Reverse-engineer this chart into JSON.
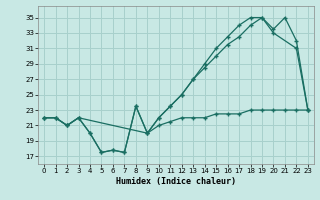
{
  "xlabel": "Humidex (Indice chaleur)",
  "bg_color": "#c8e8e4",
  "grid_color": "#a8d0cc",
  "line_color": "#1a6e62",
  "xlim": [
    -0.5,
    23.5
  ],
  "ylim": [
    16.0,
    36.5
  ],
  "xticks": [
    0,
    1,
    2,
    3,
    4,
    5,
    6,
    7,
    8,
    9,
    10,
    11,
    12,
    13,
    14,
    15,
    16,
    17,
    18,
    19,
    20,
    21,
    22,
    23
  ],
  "yticks": [
    17,
    19,
    21,
    23,
    25,
    27,
    29,
    31,
    33,
    35
  ],
  "line1_x": [
    0,
    1,
    2,
    3,
    4,
    5,
    6,
    7,
    8,
    9,
    10,
    11,
    12,
    13,
    14,
    15,
    16,
    17,
    18,
    19,
    20,
    22,
    23
  ],
  "line1_y": [
    22,
    22,
    21,
    22,
    20,
    17.5,
    17.8,
    17.5,
    23.5,
    20,
    22,
    23.5,
    25,
    27,
    28.5,
    30,
    31.5,
    32.5,
    34,
    35,
    33,
    31,
    23
  ],
  "line2_x": [
    0,
    1,
    2,
    3,
    4,
    5,
    6,
    7,
    8,
    9,
    10,
    11,
    12,
    13,
    14,
    15,
    16,
    17,
    18,
    19,
    20,
    21,
    22,
    23
  ],
  "line2_y": [
    22,
    22,
    21,
    22,
    20,
    17.5,
    17.8,
    17.5,
    23.5,
    20,
    22,
    23.5,
    25,
    27,
    29,
    31,
    32.5,
    34,
    35,
    35,
    33.5,
    35,
    32,
    23
  ],
  "line3_x": [
    0,
    1,
    2,
    3,
    9,
    10,
    11,
    12,
    13,
    14,
    15,
    16,
    17,
    18,
    19,
    20,
    21,
    22,
    23
  ],
  "line3_y": [
    22,
    22,
    21,
    22,
    20,
    21,
    21.5,
    22,
    22,
    22,
    22.5,
    22.5,
    22.5,
    23,
    23,
    23,
    23,
    23,
    23
  ]
}
